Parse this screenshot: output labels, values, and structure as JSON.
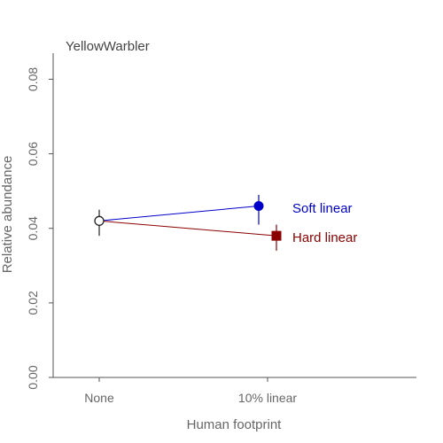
{
  "chart_data": {
    "type": "line",
    "title": "YellowWarbler",
    "xlabel": "Human footprint",
    "ylabel": "Relative abundance",
    "categories": [
      "None",
      "10% linear"
    ],
    "ylim": [
      0,
      0.087
    ],
    "yticks": [
      "0.00",
      "0.02",
      "0.04",
      "0.06",
      "0.08"
    ],
    "ytick_values": [
      0,
      0.02,
      0.04,
      0.06,
      0.08
    ],
    "grid": false,
    "reference": {
      "category": "None",
      "value": 0.042,
      "lower": 0.038,
      "upper": 0.045
    },
    "series": [
      {
        "name": "Soft linear",
        "color": "#0000cc",
        "marker": "circle",
        "values": [
          0.042,
          0.046
        ],
        "lower": [
          0.038,
          0.041
        ],
        "upper": [
          0.045,
          0.049
        ]
      },
      {
        "name": "Hard linear",
        "color": "#8b0000",
        "marker": "square",
        "values": [
          0.042,
          0.038
        ],
        "lower": [
          0.038,
          0.034
        ],
        "upper": [
          0.045,
          0.041
        ]
      }
    ]
  }
}
